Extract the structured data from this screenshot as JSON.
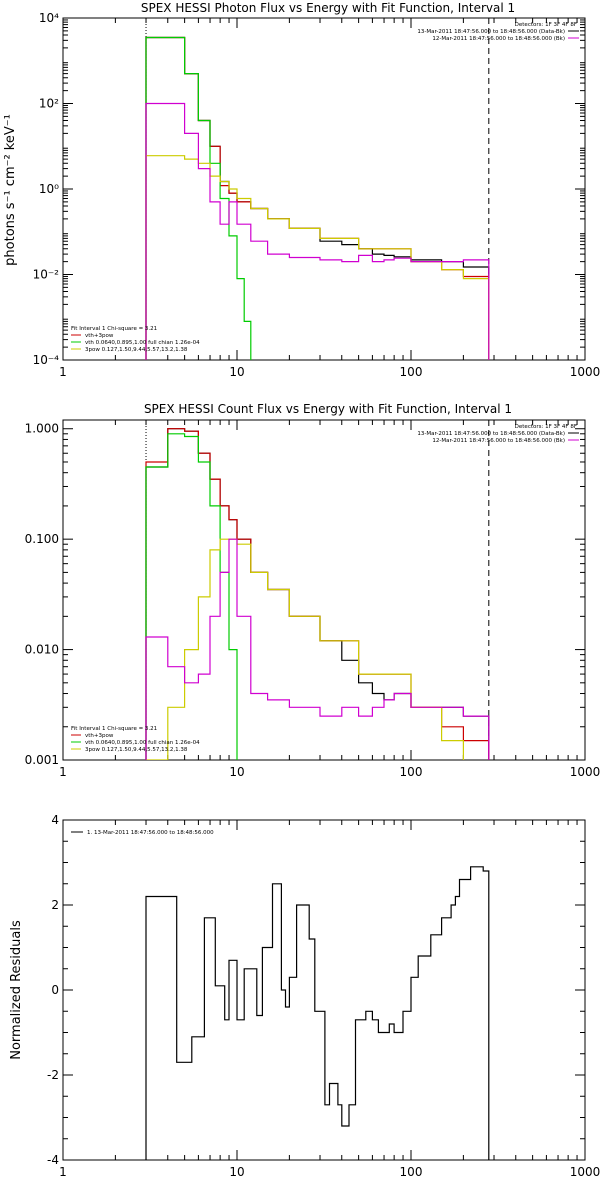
{
  "chart_data": [
    {
      "type": "line",
      "title": "SPEX HESSI Photon Flux vs Energy with Fit Function, Interval 1",
      "ylabel": "photons s⁻¹ cm⁻² keV⁻¹",
      "xlabel": "",
      "xscale": "log",
      "yscale": "log",
      "xlim": [
        1,
        1000
      ],
      "ylim": [
        0.0001,
        10000
      ],
      "xticks": [
        1,
        10,
        100,
        1000
      ],
      "xtick_labels": [
        "1",
        "10",
        "100",
        "1000"
      ],
      "yticks": [
        0.0001,
        0.01,
        1,
        100,
        10000
      ],
      "ytick_labels": [
        "10⁻⁴",
        "10⁻²",
        "10⁰",
        "10²",
        "10⁴"
      ],
      "grid": false,
      "legend_top": {
        "header": "Detectors: 1F 3F 4F 8F",
        "entries": [
          {
            "label": "13-Mar-2011 18:47:56.000 to 18:48:56.000 (Data-Bk)",
            "color": "#000000"
          },
          {
            "label": "12-Mar-2011 18:47:56.000 to 18:48:56.000 (Bk)",
            "color": "#d000d0"
          }
        ]
      },
      "legend_bottom": {
        "header": "Fit Interval 1    Chi-square = 3.21",
        "entries": [
          {
            "label": "vth+3pow",
            "color": "#cc0000"
          },
          {
            "label": "vth 0.0640,0.895,1.00  full chian 1.26e-04",
            "color": "#00cc00"
          },
          {
            "label": "3pow 0.127,1.50,9.44,5.57,13.2,1.38",
            "color": "#cccc00"
          }
        ]
      },
      "vlines": [
        {
          "x": 3,
          "color": "#000000",
          "style": "dotted"
        },
        {
          "x": 280,
          "color": "#000000",
          "style": "dashed"
        }
      ],
      "series": [
        {
          "name": "13-Mar-2011 18:47:56.000 to 18:48:56.000 (Data-Bk)",
          "color": "#000000",
          "step": true,
          "x": [
            3,
            4,
            5,
            6,
            7,
            8,
            9,
            10,
            12,
            15,
            20,
            30,
            40,
            50,
            60,
            70,
            80,
            100,
            150,
            200,
            280
          ],
          "y": [
            3500,
            3500,
            500,
            40,
            10,
            1.5,
            0.8,
            0.5,
            0.35,
            0.2,
            0.12,
            0.06,
            0.05,
            0.04,
            0.03,
            0.028,
            0.026,
            0.022,
            0.02,
            0.015,
            0.012
          ]
        },
        {
          "name": "vth+3pow",
          "color": "#cc0000",
          "step": true,
          "x": [
            3,
            4,
            5,
            6,
            7,
            8,
            9,
            10,
            12,
            15,
            20,
            30,
            50,
            100,
            150,
            200,
            280
          ],
          "y": [
            3500,
            3500,
            500,
            40,
            10,
            1.2,
            0.8,
            0.5,
            0.35,
            0.2,
            0.12,
            0.07,
            0.04,
            0.02,
            0.013,
            0.009,
            0.007
          ]
        },
        {
          "name": "vth 0.0640,0.895,1.00  full chian 1.26e-04",
          "color": "#00cc00",
          "step": true,
          "x": [
            3,
            4,
            5,
            6,
            7,
            8,
            9,
            10,
            11,
            12
          ],
          "y": [
            3500,
            3500,
            500,
            40,
            4,
            0.6,
            0.08,
            0.008,
            0.0008,
            0.0001
          ]
        },
        {
          "name": "3pow 0.127,1.50,9.44,5.57,13.2,1.38",
          "color": "#cccc00",
          "step": true,
          "x": [
            3,
            4,
            5,
            6,
            7,
            8,
            9,
            10,
            12,
            15,
            20,
            30,
            50,
            100,
            150,
            200,
            280
          ],
          "y": [
            6,
            6,
            5,
            4,
            2,
            1.5,
            1,
            0.6,
            0.35,
            0.2,
            0.12,
            0.07,
            0.04,
            0.02,
            0.013,
            0.008,
            0.005
          ]
        },
        {
          "name": "12-Mar-2011 18:47:56.000 to 18:48:56.000 (Bk)",
          "color": "#d000d0",
          "step": true,
          "x": [
            3,
            4,
            5,
            6,
            7,
            8,
            9,
            10,
            12,
            15,
            20,
            30,
            40,
            50,
            60,
            70,
            80,
            100,
            150,
            200,
            280
          ],
          "y": [
            100,
            100,
            20,
            3,
            0.5,
            0.15,
            0.5,
            0.15,
            0.06,
            0.03,
            0.025,
            0.022,
            0.02,
            0.028,
            0.02,
            0.022,
            0.024,
            0.02,
            0.02,
            0.022,
            0.02
          ]
        }
      ]
    },
    {
      "type": "line",
      "title": "SPEX HESSI Count Flux vs Energy with Fit Function, Interval 1",
      "ylabel": "",
      "xlabel": "",
      "xscale": "log",
      "yscale": "log",
      "xlim": [
        1,
        1000
      ],
      "ylim": [
        0.001,
        1.2
      ],
      "xticks": [
        1,
        10,
        100,
        1000
      ],
      "xtick_labels": [
        "1",
        "10",
        "100",
        "1000"
      ],
      "yticks": [
        0.001,
        0.01,
        0.1,
        1
      ],
      "ytick_labels": [
        "0.001",
        "0.010",
        "0.100",
        "1.000"
      ],
      "grid": false,
      "legend_top": {
        "header": "Detectors: 1F 3F 4F 8F",
        "entries": [
          {
            "label": "13-Mar-2011 18:47:56.000 to 18:48:56.000 (Data-Bk)",
            "color": "#000000"
          },
          {
            "label": "12-Mar-2011 18:47:56.000 to 18:48:56.000 (Bk)",
            "color": "#d000d0"
          }
        ]
      },
      "legend_bottom": {
        "header": "Fit Interval 1    Chi-square = 3.21",
        "entries": [
          {
            "label": "vth+3pow",
            "color": "#cc0000"
          },
          {
            "label": "vth 0.0640,0.895,1.00  full chian 1.26e-04",
            "color": "#00cc00"
          },
          {
            "label": "3pow 0.127,1.50,9.44,5.57,13.2,1.38",
            "color": "#cccc00"
          }
        ]
      },
      "vlines": [
        {
          "x": 3,
          "color": "#000000",
          "style": "dotted"
        },
        {
          "x": 280,
          "color": "#000000",
          "style": "dashed"
        }
      ],
      "series": [
        {
          "name": "13-Mar-2011 18:47:56.000 to 18:48:56.000 (Data-Bk)",
          "color": "#000000",
          "step": true,
          "x": [
            3,
            4,
            5,
            6,
            7,
            8,
            9,
            10,
            12,
            15,
            20,
            30,
            40,
            50,
            60,
            70,
            80,
            100,
            150,
            200,
            280
          ],
          "y": [
            0.45,
            1.0,
            0.95,
            0.6,
            0.35,
            0.2,
            0.15,
            0.1,
            0.05,
            0.035,
            0.02,
            0.012,
            0.008,
            0.005,
            0.004,
            0.0035,
            0.004,
            0.003,
            0.003,
            0.0025,
            0.002
          ]
        },
        {
          "name": "vth+3pow",
          "color": "#cc0000",
          "step": true,
          "x": [
            3,
            4,
            5,
            6,
            7,
            8,
            9,
            10,
            12,
            15,
            20,
            30,
            50,
            100,
            150,
            200,
            280
          ],
          "y": [
            0.5,
            1.0,
            0.95,
            0.6,
            0.35,
            0.2,
            0.15,
            0.1,
            0.05,
            0.035,
            0.02,
            0.012,
            0.006,
            0.003,
            0.002,
            0.0015,
            0.001
          ]
        },
        {
          "name": "vth 0.0640,0.895,1.00  full chian 1.26e-04",
          "color": "#00cc00",
          "step": true,
          "x": [
            3,
            4,
            5,
            6,
            7,
            8,
            9,
            10
          ],
          "y": [
            0.45,
            0.9,
            0.85,
            0.5,
            0.2,
            0.05,
            0.01,
            0.001
          ]
        },
        {
          "name": "3pow 0.127,1.50,9.44,5.57,13.2,1.38",
          "color": "#cccc00",
          "step": true,
          "x": [
            3,
            4,
            5,
            6,
            7,
            8,
            9,
            10,
            12,
            15,
            20,
            30,
            50,
            100,
            150,
            200
          ],
          "y": [
            0.001,
            0.003,
            0.01,
            0.03,
            0.08,
            0.1,
            0.1,
            0.09,
            0.05,
            0.035,
            0.02,
            0.012,
            0.006,
            0.003,
            0.0015,
            0.001
          ]
        },
        {
          "name": "12-Mar-2011 18:47:56.000 to 18:48:56.000 (Bk)",
          "color": "#d000d0",
          "step": true,
          "x": [
            3,
            4,
            5,
            6,
            7,
            8,
            9,
            10,
            12,
            15,
            20,
            30,
            40,
            50,
            60,
            70,
            80,
            100,
            150,
            200,
            280
          ],
          "y": [
            0.013,
            0.007,
            0.005,
            0.006,
            0.02,
            0.05,
            0.1,
            0.02,
            0.004,
            0.0035,
            0.003,
            0.0025,
            0.003,
            0.0025,
            0.003,
            0.0035,
            0.004,
            0.003,
            0.003,
            0.0025,
            0.002
          ]
        }
      ]
    },
    {
      "type": "line",
      "title": "",
      "ylabel": "Normalized Residuals",
      "xlabel": "",
      "xscale": "log",
      "yscale": "linear",
      "xlim": [
        1,
        1000
      ],
      "ylim": [
        -4,
        4
      ],
      "xticks": [
        1,
        10,
        100,
        1000
      ],
      "xtick_labels": [
        "1",
        "10",
        "100",
        "1000"
      ],
      "yticks": [
        -4,
        -2,
        0,
        2,
        4
      ],
      "ytick_labels": [
        "-4",
        "-2",
        "0",
        "2",
        "4"
      ],
      "grid": false,
      "legend_top": {
        "header": "",
        "entries": [
          {
            "label": "1. 13-Mar-2011 18:47:56.000 to 18:48:56.000",
            "color": "#000000"
          }
        ]
      },
      "vlines": [],
      "series": [
        {
          "name": "1. 13-Mar-2011 18:47:56.000 to 18:48:56.000",
          "color": "#000000",
          "step": true,
          "x": [
            3,
            3.5,
            4,
            4.5,
            5,
            5.5,
            6,
            6.5,
            7,
            7.5,
            8,
            8.5,
            9,
            9.5,
            10,
            11,
            12,
            13,
            14,
            15,
            16,
            17,
            18,
            19,
            20,
            22,
            24,
            26,
            28,
            30,
            32,
            34,
            36,
            38,
            40,
            42,
            44,
            46,
            48,
            50,
            55,
            60,
            65,
            70,
            75,
            80,
            85,
            90,
            95,
            100,
            110,
            120,
            130,
            140,
            150,
            160,
            170,
            180,
            190,
            200,
            220,
            240,
            260,
            280
          ],
          "y": [
            2.2,
            2.2,
            2.2,
            -1.7,
            -1.7,
            -1.1,
            -1.1,
            1.7,
            1.7,
            0.1,
            0.1,
            -0.7,
            0.7,
            0.7,
            -0.7,
            0.5,
            0.5,
            -0.6,
            1.0,
            1.0,
            2.5,
            2.5,
            0.0,
            -0.4,
            0.3,
            2.0,
            2.0,
            1.2,
            -0.5,
            -0.5,
            -2.7,
            -2.2,
            -2.2,
            -2.7,
            -3.2,
            -3.2,
            -2.7,
            -2.7,
            -0.7,
            -0.7,
            -0.5,
            -0.7,
            -1.0,
            -1.0,
            -0.8,
            -1.0,
            -1.0,
            -0.5,
            -0.5,
            0.3,
            0.8,
            0.8,
            1.3,
            1.3,
            1.7,
            1.7,
            2.0,
            2.2,
            2.6,
            2.6,
            2.9,
            2.9,
            2.8,
            2.5
          ]
        }
      ]
    }
  ]
}
